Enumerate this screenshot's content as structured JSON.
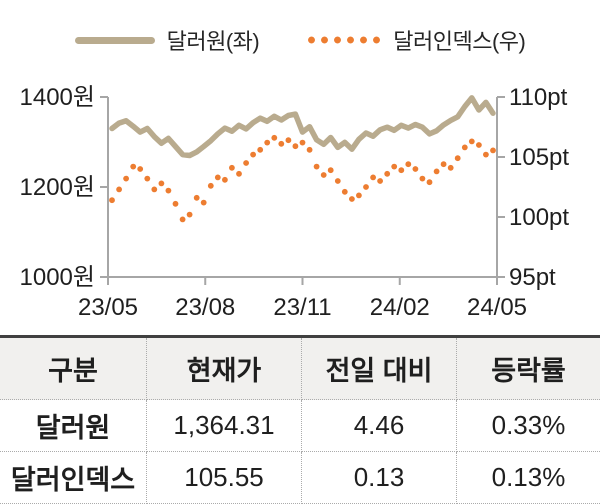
{
  "legend": {
    "series1_label": "달러원(좌)",
    "series2_label": "달러인덱스(우)"
  },
  "chart_data": {
    "type": "line",
    "title": "",
    "x_tick_labels": [
      "23/05",
      "23/08",
      "23/11",
      "24/02",
      "24/05"
    ],
    "left_axis": {
      "unit": "원",
      "range": [
        1000,
        1400
      ],
      "ticks": [
        1400,
        1200,
        1000
      ],
      "tick_labels": [
        "1400원",
        "1200원",
        "1000원"
      ]
    },
    "right_axis": {
      "unit": "pt",
      "range": [
        95,
        110
      ],
      "ticks": [
        110,
        105,
        100,
        95
      ],
      "tick_labels": [
        "110pt",
        "105pt",
        "100pt",
        "95pt"
      ]
    },
    "grid": false,
    "legend_position": "top",
    "series": [
      {
        "name": "달러원(좌)",
        "axis": "left",
        "style": "solid",
        "color": "#b9ab8e",
        "values": [
          1330,
          1342,
          1347,
          1335,
          1322,
          1330,
          1312,
          1297,
          1308,
          1290,
          1272,
          1270,
          1278,
          1290,
          1303,
          1318,
          1331,
          1324,
          1337,
          1329,
          1343,
          1353,
          1346,
          1357,
          1349,
          1359,
          1362,
          1322,
          1334,
          1305,
          1295,
          1310,
          1288,
          1299,
          1284,
          1306,
          1320,
          1313,
          1327,
          1333,
          1326,
          1337,
          1331,
          1339,
          1333,
          1318,
          1325,
          1338,
          1348,
          1356,
          1379,
          1398,
          1371,
          1388,
          1364
        ]
      },
      {
        "name": "달러인덱스(우)",
        "axis": "right",
        "style": "dotted",
        "color": "#ED7D31",
        "values": [
          101.4,
          102.3,
          103.2,
          104.2,
          104.0,
          103.2,
          102.3,
          102.8,
          102.2,
          101.1,
          99.8,
          100.2,
          101.6,
          101.2,
          102.6,
          103.3,
          103.1,
          104.1,
          103.6,
          104.5,
          105.2,
          105.6,
          106.2,
          106.6,
          106.1,
          106.4,
          105.9,
          106.2,
          105.6,
          104.2,
          103.5,
          103.9,
          103.0,
          102.1,
          101.5,
          101.8,
          102.5,
          103.3,
          103.0,
          103.6,
          104.2,
          103.9,
          104.4,
          104.0,
          103.2,
          102.9,
          103.8,
          104.4,
          104.1,
          104.9,
          105.8,
          106.3,
          106.0,
          105.2,
          105.55
        ]
      }
    ]
  },
  "table": {
    "headers": [
      "구분",
      "현재가",
      "전일 대비",
      "등락률"
    ],
    "rows": [
      {
        "label": "달러원",
        "cells": [
          "1,364.31",
          "4.46",
          "0.33%"
        ]
      },
      {
        "label": "달러인덱스",
        "cells": [
          "105.55",
          "0.13",
          "0.13%"
        ]
      }
    ]
  },
  "colors": {
    "series1": "#b9ab8e",
    "series2": "#ED7D31",
    "axis": "#a6a6a6",
    "table_top_border": "#404040",
    "header_bg": "#f1f0ee"
  }
}
